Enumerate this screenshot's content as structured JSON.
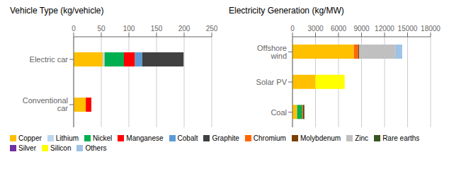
{
  "chart_data": [
    {
      "type": "bar",
      "title": "Vehicle Type (kg/vehicle)",
      "orientation": "horizontal",
      "stacked": true,
      "grid": true,
      "legend": "lower left",
      "categories": [
        "Electric car",
        "Conventional car"
      ],
      "series": [
        {
          "name": "Copper",
          "color": "#FFC000",
          "values": [
            53,
            22
          ]
        },
        {
          "name": "Lithium",
          "color": "#BDD7EE",
          "values": [
            3,
            0
          ]
        },
        {
          "name": "Nickel",
          "color": "#00B050",
          "values": [
            35,
            0
          ]
        },
        {
          "name": "Manganese",
          "color": "#FF0000",
          "values": [
            20,
            10
          ]
        },
        {
          "name": "Cobalt",
          "color": "#5B9BD5",
          "values": [
            13,
            0
          ]
        },
        {
          "name": "Graphite",
          "color": "#404040",
          "values": [
            75,
            0
          ]
        },
        {
          "name": "Chromium",
          "color": "#FF6600",
          "values": [
            0,
            0
          ]
        },
        {
          "name": "Molybdenum",
          "color": "#7B3F00",
          "values": [
            0,
            0
          ]
        },
        {
          "name": "Zinc",
          "color": "#C0C0C0",
          "values": [
            0,
            0
          ]
        },
        {
          "name": "Rare earths",
          "color": "#375623",
          "values": [
            0,
            0
          ]
        },
        {
          "name": "Silver",
          "color": "#7030A0",
          "values": [
            0,
            0
          ]
        },
        {
          "name": "Silicon",
          "color": "#FFFF00",
          "values": [
            0,
            0
          ]
        },
        {
          "name": "Others",
          "color": "#9DC3E6",
          "values": [
            0,
            0
          ]
        }
      ],
      "xlim": [
        0,
        250
      ],
      "xticks": [
        0,
        50,
        100,
        150,
        200,
        250
      ]
    },
    {
      "type": "bar",
      "title": "Electricity Generation (kg/MW)",
      "orientation": "horizontal",
      "stacked": true,
      "grid": true,
      "legend": "lower left",
      "categories": [
        "Offshore wind",
        "Solar PV",
        "Coal"
      ],
      "series": [
        {
          "name": "Copper",
          "color": "#FFC000",
          "values": [
            8000,
            3000,
            600
          ]
        },
        {
          "name": "Lithium",
          "color": "#BDD7EE",
          "values": [
            0,
            0,
            0
          ]
        },
        {
          "name": "Nickel",
          "color": "#00B050",
          "values": [
            0,
            0,
            600
          ]
        },
        {
          "name": "Manganese",
          "color": "#FF0000",
          "values": [
            0,
            0,
            0
          ]
        },
        {
          "name": "Cobalt",
          "color": "#5B9BD5",
          "values": [
            0,
            0,
            0
          ]
        },
        {
          "name": "Graphite",
          "color": "#404040",
          "values": [
            0,
            0,
            0
          ]
        },
        {
          "name": "Chromium",
          "color": "#FF6600",
          "values": [
            550,
            0,
            150
          ]
        },
        {
          "name": "Molybdenum",
          "color": "#7B3F00",
          "values": [
            150,
            0,
            0
          ]
        },
        {
          "name": "Zinc",
          "color": "#C0C0C0",
          "values": [
            4700,
            0,
            0
          ]
        },
        {
          "name": "Rare earths",
          "color": "#375623",
          "values": [
            0,
            0,
            200
          ]
        },
        {
          "name": "Silver",
          "color": "#7030A0",
          "values": [
            0,
            0,
            0
          ]
        },
        {
          "name": "Silicon",
          "color": "#FFFF00",
          "values": [
            0,
            3800,
            0
          ]
        },
        {
          "name": "Others",
          "color": "#9DC3E6",
          "values": [
            900,
            0,
            0
          ]
        }
      ],
      "xlim": [
        0,
        18000
      ],
      "xticks": [
        0,
        3000,
        6000,
        9000,
        12000,
        15000,
        18000
      ]
    }
  ]
}
